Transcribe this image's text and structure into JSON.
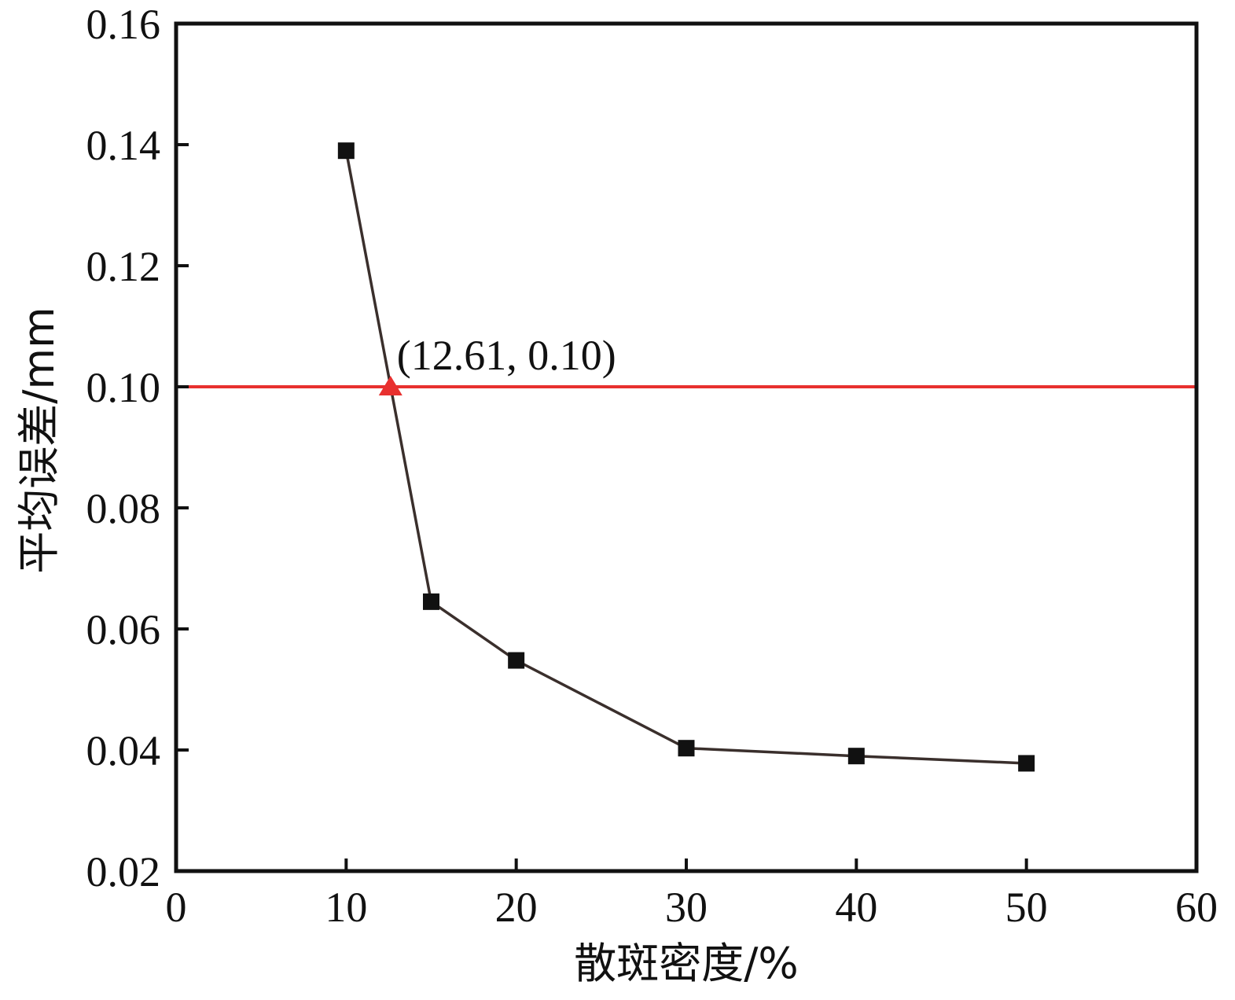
{
  "chart_data": {
    "type": "line",
    "title": "",
    "xlabel": "散斑密度/%",
    "ylabel": "平均误差/mm",
    "xlim": [
      0,
      60
    ],
    "ylim": [
      0.02,
      0.16
    ],
    "x_ticks": [
      0,
      10,
      20,
      30,
      40,
      50,
      60
    ],
    "x_tick_labels": [
      "0",
      "10",
      "20",
      "30",
      "40",
      "50",
      "60"
    ],
    "y_ticks": [
      0.02,
      0.04,
      0.06,
      0.08,
      0.1,
      0.12,
      0.14,
      0.16
    ],
    "y_tick_labels": [
      "0.02",
      "0.04",
      "0.06",
      "0.08",
      "0.10",
      "0.12",
      "0.14",
      "0.16"
    ],
    "grid": false,
    "legend": "none",
    "series": [
      {
        "x": [
          10,
          15,
          20,
          30,
          40,
          50
        ],
        "y": [
          0.139,
          0.0645,
          0.0548,
          0.0403,
          0.039,
          0.0378
        ],
        "color": "#3a2f2c",
        "marker": "square",
        "marker_color": "#111111"
      }
    ],
    "reference_line": {
      "y": 0.1,
      "color": "#e8302f"
    },
    "highlight_point": {
      "x": 12.61,
      "y": 0.1,
      "marker": "triangle",
      "color": "#e8302f"
    },
    "annotation": {
      "text": "(12.61, 0.10)",
      "x": 12.61,
      "y": 0.1
    }
  }
}
